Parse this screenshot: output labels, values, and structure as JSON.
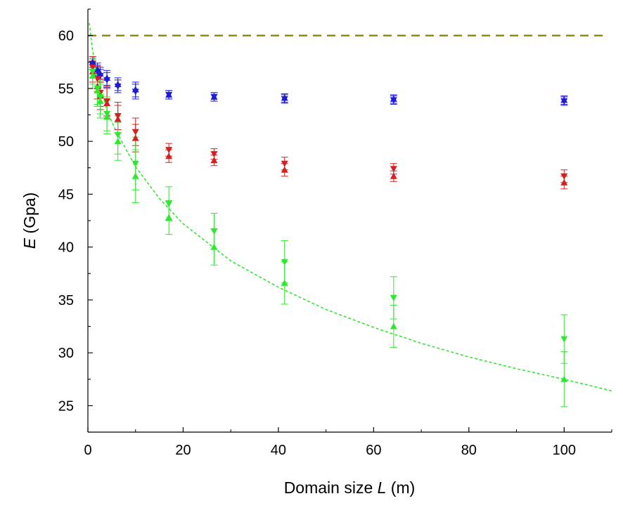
{
  "chart_data": {
    "type": "scatter",
    "title": "",
    "xlabel": {
      "prefix": "Domain size ",
      "italic": "L",
      "suffix": " (m)"
    },
    "ylabel": {
      "italic": "E",
      "suffix": " (Gpa)"
    },
    "xlim": [
      0,
      110
    ],
    "ylim": [
      22.5,
      62.5
    ],
    "xticks": [
      0,
      20,
      40,
      60,
      80,
      100
    ],
    "yticks": [
      25,
      30,
      35,
      40,
      45,
      50,
      55,
      60
    ],
    "grid": false,
    "legend": "none",
    "x": [
      1,
      2,
      2.6,
      4,
      6.3,
      10,
      17,
      26.5,
      41.3,
      64.2,
      100
    ],
    "series": [
      {
        "marker": "triangle-down",
        "color": "#1c1cd6",
        "values": [
          57.3,
          56.6,
          56.2,
          55.8,
          55.2,
          54.7,
          54.4,
          54.2,
          54.0,
          53.9,
          53.8
        ],
        "errors": [
          0.5,
          0.6,
          0.6,
          0.7,
          0.6,
          0.7,
          0.4,
          0.4,
          0.4,
          0.4,
          0.4
        ]
      },
      {
        "marker": "triangle-up",
        "color": "#1c1cd6",
        "values": [
          57.5,
          56.8,
          56.4,
          56.0,
          55.4,
          54.9,
          54.4,
          54.2,
          54.1,
          54.0,
          53.9
        ],
        "errors": [
          0.5,
          0.6,
          0.6,
          0.7,
          0.6,
          0.7,
          0.4,
          0.4,
          0.4,
          0.4,
          0.4
        ]
      },
      {
        "marker": "triangle-down",
        "color": "#d62020",
        "values": [
          57.0,
          55.9,
          54.6,
          53.8,
          52.4,
          50.9,
          49.2,
          48.8,
          47.9,
          47.4,
          46.7
        ],
        "errors": [
          1.0,
          1.2,
          1.3,
          1.4,
          1.3,
          1.3,
          0.6,
          0.5,
          0.6,
          0.5,
          0.6
        ]
      },
      {
        "marker": "triangle-up",
        "color": "#d62020",
        "values": [
          56.6,
          55.2,
          54.3,
          53.6,
          52.1,
          50.3,
          48.6,
          48.2,
          47.3,
          46.7,
          46.1
        ],
        "errors": [
          1.0,
          1.2,
          1.3,
          1.4,
          1.3,
          1.3,
          0.6,
          0.5,
          0.6,
          0.5,
          0.6
        ]
      },
      {
        "marker": "triangle-down",
        "color": "#2ee82e",
        "values": [
          56.6,
          55.0,
          54.2,
          52.6,
          50.6,
          47.9,
          44.1,
          41.5,
          38.6,
          35.2,
          31.3
        ],
        "errors": [
          1.2,
          1.5,
          1.6,
          1.6,
          1.8,
          2.5,
          1.6,
          1.7,
          2.0,
          2.0,
          2.3
        ]
      },
      {
        "marker": "triangle-up",
        "color": "#2ee82e",
        "values": [
          56.2,
          54.8,
          53.8,
          52.3,
          50.0,
          46.7,
          42.8,
          40.0,
          36.6,
          32.5,
          27.5
        ],
        "errors": [
          1.2,
          1.5,
          1.6,
          1.6,
          1.8,
          2.5,
          1.6,
          1.7,
          2.0,
          2.0,
          2.6
        ]
      }
    ],
    "reference_line": {
      "y": 60,
      "color": "#808000",
      "style": "dashed"
    },
    "fit_curve": {
      "color": "#2ee82e",
      "style": "dotted",
      "x": [
        0.3,
        1,
        2,
        4,
        6,
        10,
        15,
        20,
        30,
        40,
        50,
        60,
        70,
        80,
        90,
        100,
        110
      ],
      "y": [
        61.2,
        58.5,
        56.4,
        52.9,
        50.9,
        47.6,
        44.6,
        42.2,
        38.7,
        36.2,
        34.1,
        32.4,
        30.9,
        29.6,
        28.5,
        27.5,
        26.4
      ]
    }
  }
}
